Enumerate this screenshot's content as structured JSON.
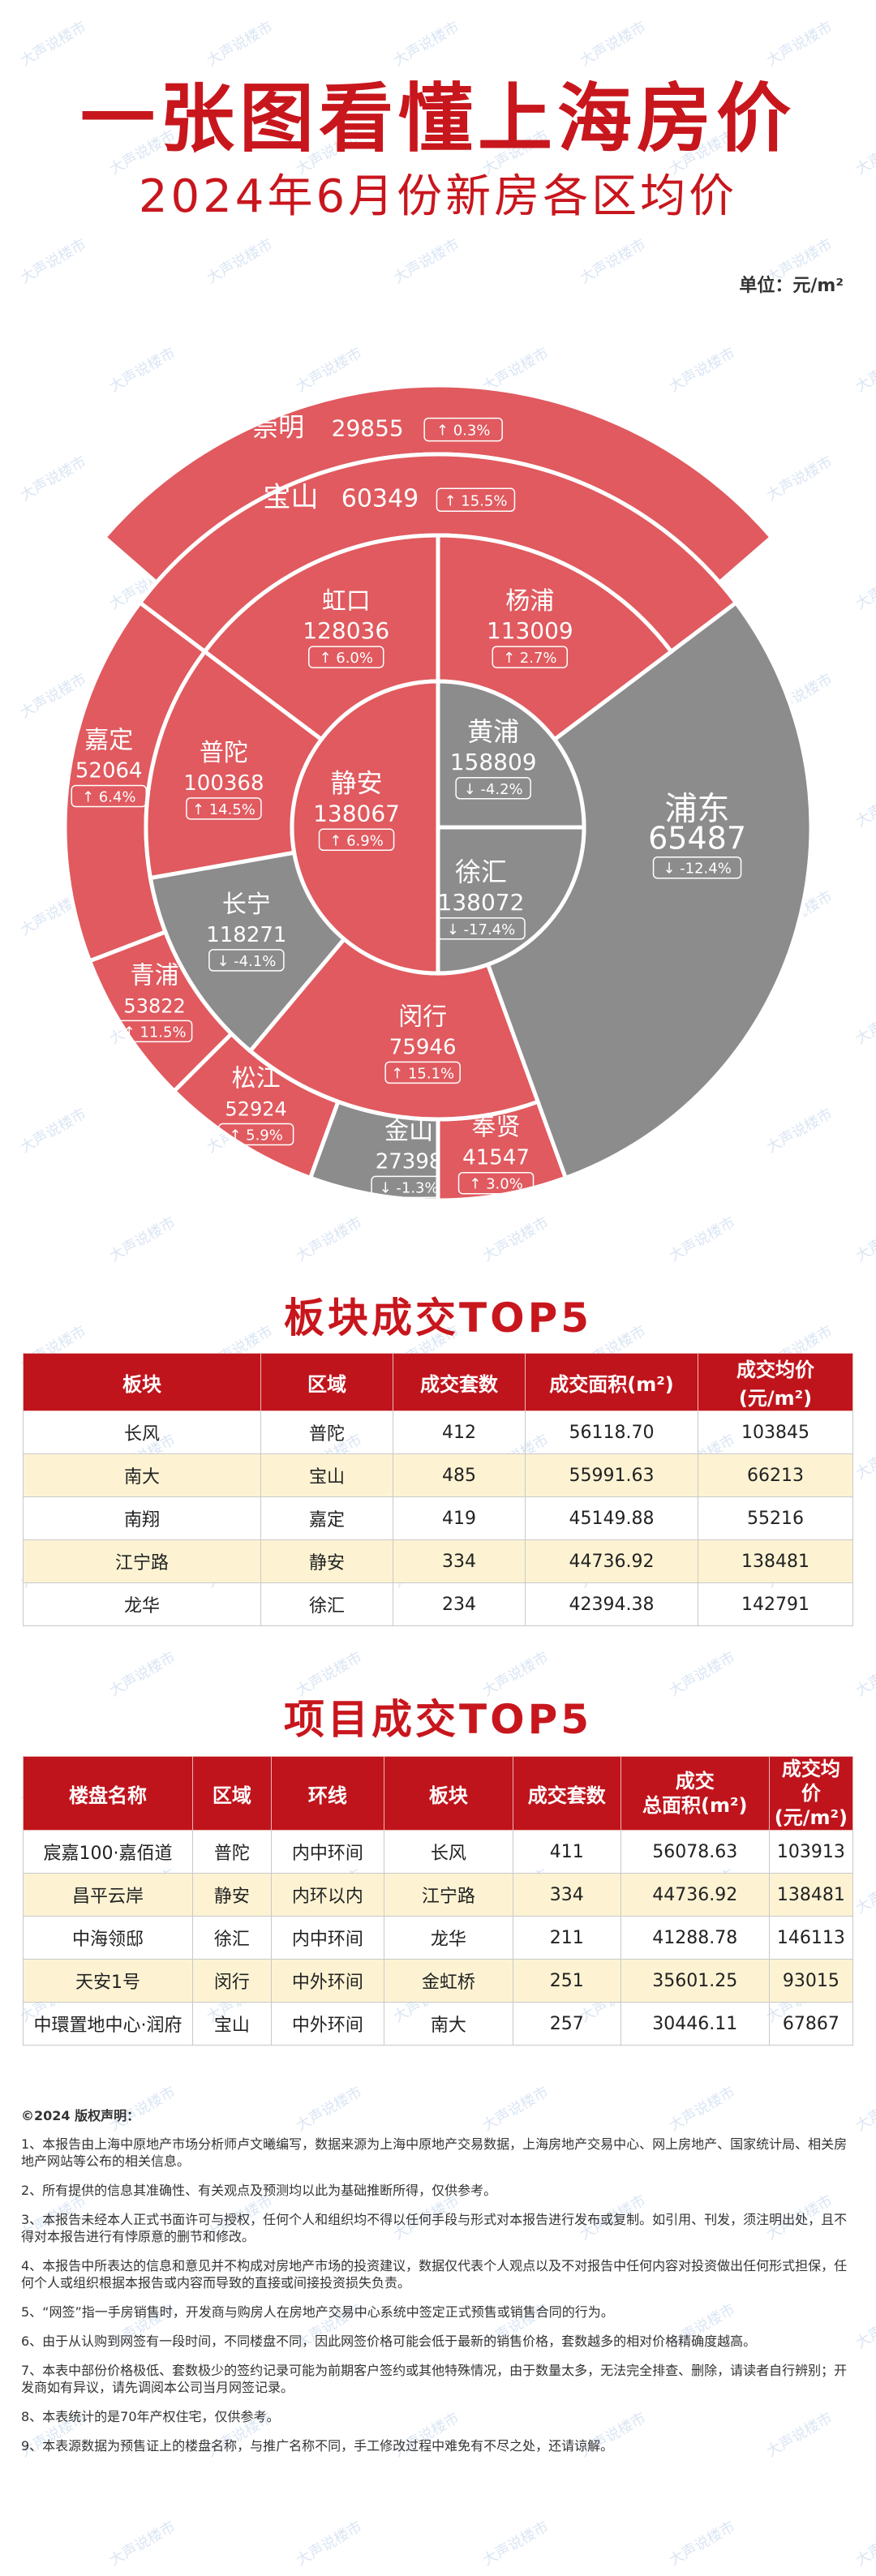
{
  "title": "一张图看懂上海房价",
  "subtitle": "2024年6月份新房各区均价",
  "unit_label": "单位：元/m²",
  "watermark": "大声说楼市",
  "colors": {
    "up": "#e05a5f",
    "down": "#8c8c8c",
    "accent": "#c8161d"
  },
  "chart_data": {
    "type": "pie",
    "unit": "元/m²",
    "series": [
      {
        "district": "崇明",
        "price": 29855,
        "change": "0.3%",
        "direction": "up"
      },
      {
        "district": "宝山",
        "price": 60349,
        "change": "15.5%",
        "direction": "up"
      },
      {
        "district": "杨浦",
        "price": 113009,
        "change": "2.7%",
        "direction": "up"
      },
      {
        "district": "虹口",
        "price": 128036,
        "change": "6.0%",
        "direction": "up"
      },
      {
        "district": "黄浦",
        "price": 158809,
        "change": "-4.2%",
        "direction": "down"
      },
      {
        "district": "静安",
        "price": 138067,
        "change": "6.9%",
        "direction": "up"
      },
      {
        "district": "普陀",
        "price": 100368,
        "change": "14.5%",
        "direction": "up"
      },
      {
        "district": "徐汇",
        "price": 138072,
        "change": "-17.4%",
        "direction": "down"
      },
      {
        "district": "长宁",
        "price": 118271,
        "change": "-4.1%",
        "direction": "down"
      },
      {
        "district": "浦东",
        "price": 65487,
        "change": "-12.4%",
        "direction": "down"
      },
      {
        "district": "嘉定",
        "price": 52064,
        "change": "6.4%",
        "direction": "up"
      },
      {
        "district": "青浦",
        "price": 53822,
        "change": "11.5%",
        "direction": "up"
      },
      {
        "district": "松江",
        "price": 52924,
        "change": "5.9%",
        "direction": "up"
      },
      {
        "district": "闵行",
        "price": 75946,
        "change": "15.1%",
        "direction": "up"
      },
      {
        "district": "金山",
        "price": 27398,
        "change": "-1.3%",
        "direction": "down"
      },
      {
        "district": "奉贤",
        "price": 41547,
        "change": "3.0%",
        "direction": "up"
      }
    ]
  },
  "block_top5": {
    "title": "板块成交TOP5",
    "headers": [
      "板块",
      "区域",
      "成交套数",
      "成交面积(m²)",
      "成交均价(元/m²)"
    ],
    "rows": [
      [
        "长风",
        "普陀",
        "412",
        "56118.70",
        "103845"
      ],
      [
        "南大",
        "宝山",
        "485",
        "55991.63",
        "66213"
      ],
      [
        "南翔",
        "嘉定",
        "419",
        "45149.88",
        "55216"
      ],
      [
        "江宁路",
        "静安",
        "334",
        "44736.92",
        "138481"
      ],
      [
        "龙华",
        "徐汇",
        "234",
        "42394.38",
        "142791"
      ]
    ]
  },
  "project_top5": {
    "title": "项目成交TOP5",
    "headers": [
      "楼盘名称",
      "区域",
      "环线",
      "板块",
      "成交套数",
      "成交\n总面积(m²)",
      "成交均价\n(元/m²)"
    ],
    "rows": [
      [
        "宸嘉100·嘉佰道",
        "普陀",
        "内中环间",
        "长风",
        "411",
        "56078.63",
        "103913"
      ],
      [
        "昌平云岸",
        "静安",
        "内环以内",
        "江宁路",
        "334",
        "44736.92",
        "138481"
      ],
      [
        "中海领邸",
        "徐汇",
        "内中环间",
        "龙华",
        "211",
        "41288.78",
        "146113"
      ],
      [
        "天安1号",
        "闵行",
        "中外环间",
        "金虹桥",
        "251",
        "35601.25",
        "93015"
      ],
      [
        "中環置地中心·润府",
        "宝山",
        "中外环间",
        "南大",
        "257",
        "30446.11",
        "67867"
      ]
    ]
  },
  "disclaimer": {
    "title": "©2024 版权声明：",
    "items": [
      "1、本报告由上海中原地产市场分析师卢文曦编写，数据来源为上海中原地产交易数据，上海房地产交易中心、网上房地产、国家统计局、相关房地产网站等公布的相关信息。",
      "2、所有提供的信息其准确性、有关观点及预测均以此为基础推断所得，仅供参考。",
      "3、本报告未经本人正式书面许可与授权，任何个人和组织均不得以任何手段与形式对本报告进行发布或复制。如引用、刊发，须注明出处，且不得对本报告进行有悖原意的删节和修改。",
      "4、本报告中所表达的信息和意见并不构成对房地产市场的投资建议，数据仅代表个人观点以及不对报告中任何内容对投资做出任何形式担保，任何个人或组织根据本报告或内容而导致的直接或间接投资损失负责。",
      "5、“网签”指一手房销售时，开发商与购房人在房地产交易中心系统中签定正式预售或销售合同的行为。",
      "6、由于从认购到网签有一段时间，不同楼盘不同，因此网签价格可能会低于最新的销售价格，套数越多的相对价格精确度越高。",
      "7、本表中部份价格极低、套数极少的签约记录可能为前期客户签约或其他特殊情况，由于数量太多，无法完全排查、删除，请读者自行辨别；开发商如有异议，请先调阅本公司当月网签记录。",
      "8、本表统计的是70年产权住宅，仅供参考。",
      "9、本表源数据为预售证上的楼盘名称，与推广名称不同，手工修改过程中难免有不尽之处，还请谅解。"
    ]
  }
}
